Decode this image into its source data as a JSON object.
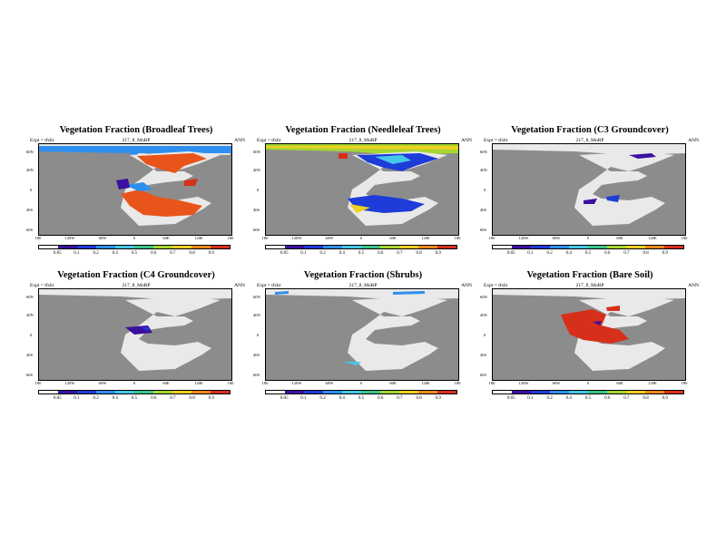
{
  "common": {
    "left_label": "Expt = tfslir",
    "center_label": "217_8_MoRP",
    "right_label": "ANN",
    "lat_ticks": [
      "60N",
      "40N",
      "0",
      "40S",
      "60S"
    ],
    "lon_ticks": [
      "180",
      "120W",
      "60W",
      "0",
      "60E",
      "120E",
      "180"
    ],
    "colorbar_colors": [
      "#ffffff",
      "#3b0fa0",
      "#1d3cd8",
      "#2f8ff0",
      "#46c7e8",
      "#3fc48a",
      "#a6d632",
      "#f0d021",
      "#f08a1a",
      "#d7301a"
    ],
    "colorbar_labels": [
      "0.05",
      "0.1",
      "0.2",
      "0.4",
      "0.5",
      "0.6",
      "0.7",
      "0.8",
      "0.9"
    ],
    "land_color": "#ececec",
    "ocean_color": "#8c8c8c"
  },
  "panels": [
    {
      "title": "Vegetation Fraction (Broadleaf Trees)"
    },
    {
      "title": "Vegetation Fraction (Needleleaf Trees)"
    },
    {
      "title": "Vegetation Fraction (C3 Groundcover)"
    },
    {
      "title": "Vegetation Fraction (C4 Groundcover)"
    },
    {
      "title": "Vegetation Fraction (Shrubs)"
    },
    {
      "title": "Vegetation Fraction (Bare Soil)"
    }
  ]
}
